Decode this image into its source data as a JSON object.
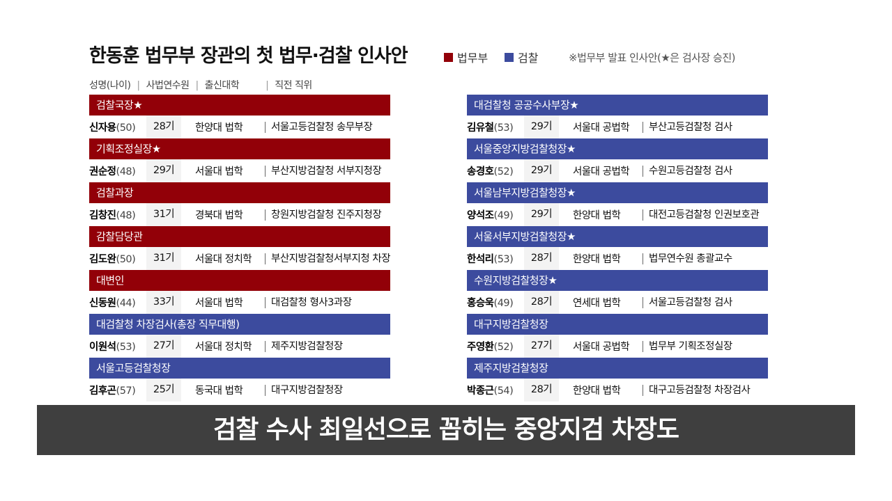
{
  "title": "한동훈 법무부 장관의 첫 법무·검찰 인사안",
  "legend": {
    "moj_label": "법무부",
    "moj_color": "#920008",
    "pros_label": "검찰",
    "pros_color": "#3c4b9e"
  },
  "note": "※법무부 발표 인사안(★은 검사장 승진)",
  "column_headers": {
    "name": "성명(나이)",
    "training": "사법연수원",
    "university": "출신대학",
    "previous": "직전 직위"
  },
  "left": [
    {
      "type": "moj",
      "post": "검찰국장★",
      "name": "신자용",
      "age": "(50)",
      "gen": "28기",
      "uni": "한양대 법학",
      "prev": "서울고등검찰청 송무부장"
    },
    {
      "type": "moj",
      "post": "기획조정실장★",
      "name": "권순정",
      "age": "(48)",
      "gen": "29기",
      "uni": "서울대 법학",
      "prev": "부산지방검찰청 서부지청장"
    },
    {
      "type": "moj",
      "post": "검찰과장",
      "name": "김창진",
      "age": "(48)",
      "gen": "31기",
      "uni": "경북대 법학",
      "prev": "창원지방검찰청 진주지청장"
    },
    {
      "type": "moj",
      "post": "감찰담당관",
      "name": "김도완",
      "age": "(50)",
      "gen": "31기",
      "uni": "서울대 정치학",
      "prev": "부산지방검찰청서부지청 차장"
    },
    {
      "type": "moj",
      "post": "대변인",
      "name": "신동원",
      "age": "(44)",
      "gen": "33기",
      "uni": "서울대 법학",
      "prev": "대검찰청 형사3과장"
    },
    {
      "type": "pros",
      "post": "대검찰청 차장검사(총장 직무대행)",
      "name": "이원석",
      "age": "(53)",
      "gen": "27기",
      "uni": "서울대 정치학",
      "prev": "제주지방검찰청장"
    },
    {
      "type": "pros",
      "post": "서울고등검찰청장",
      "name": "김후곤",
      "age": "(57)",
      "gen": "25기",
      "uni": "동국대 법학",
      "prev": "대구지방검찰청장"
    }
  ],
  "right": [
    {
      "type": "pros",
      "post": "대검찰청 공공수사부장★",
      "name": "김유철",
      "age": "(53)",
      "gen": "29기",
      "uni": "서울대 공법학",
      "prev": "부산고등검찰청 검사"
    },
    {
      "type": "pros",
      "post": "서울중앙지방검찰청장★",
      "name": "송경호",
      "age": "(52)",
      "gen": "29기",
      "uni": "서울대 공법학",
      "prev": "수원고등검찰청 검사"
    },
    {
      "type": "pros",
      "post": "서울남부지방검찰청장★",
      "name": "양석조",
      "age": "(49)",
      "gen": "29기",
      "uni": "한양대 법학",
      "prev": "대전고등검찰청 인권보호관"
    },
    {
      "type": "pros",
      "post": "서울서부지방검찰청장★",
      "name": "한석리",
      "age": "(53)",
      "gen": "28기",
      "uni": "한양대 법학",
      "prev": "법무연수원 총괄교수"
    },
    {
      "type": "pros",
      "post": "수원지방검찰청장★",
      "name": "홍승욱",
      "age": "(49)",
      "gen": "28기",
      "uni": "연세대 법학",
      "prev": "서울고등검찰청 검사"
    },
    {
      "type": "pros",
      "post": "대구지방검찰청장",
      "name": "주영환",
      "age": "(52)",
      "gen": "27기",
      "uni": "서울대 공법학",
      "prev": "법무부 기획조정실장"
    },
    {
      "type": "pros",
      "post": "제주지방검찰청장",
      "name": "박종근",
      "age": "(54)",
      "gen": "28기",
      "uni": "한양대 법학",
      "prev": "대구고등검찰청 차장검사"
    }
  ],
  "caption": "검찰 수사 최일선으로 꼽히는 중앙지검 차장도"
}
